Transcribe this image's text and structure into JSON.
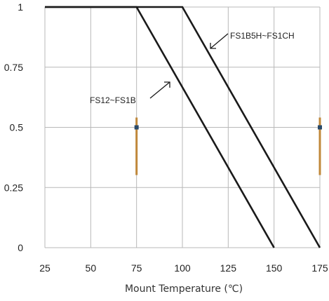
{
  "chart_data": {
    "type": "line",
    "title": "",
    "xlabel": "Mount Temperature (℃)",
    "ylabel": "",
    "xlim": [
      25,
      175
    ],
    "ylim": [
      0,
      1
    ],
    "x_ticks": [
      25,
      50,
      75,
      100,
      125,
      150,
      175
    ],
    "y_ticks": [
      {
        "value": 0,
        "label": "0"
      },
      {
        "value": 0.25,
        "label": "0.25"
      },
      {
        "value": 0.5,
        "label": "0.5"
      },
      {
        "value": 0.75,
        "label": "0.75"
      },
      {
        "value": 1,
        "label": "1"
      }
    ],
    "grid": true,
    "series": [
      {
        "name": "FS12~FS1B",
        "points": [
          [
            25,
            1
          ],
          [
            75,
            1
          ],
          [
            150,
            0
          ]
        ]
      },
      {
        "name": "FS1B5H~FS1CH",
        "points": [
          [
            25,
            1
          ],
          [
            100,
            1
          ],
          [
            175,
            0
          ]
        ]
      }
    ],
    "annotations": [
      {
        "text": "FS1B5H~FS1CH",
        "series": 1
      },
      {
        "text": "FS12~FS1B",
        "series": 0
      }
    ]
  },
  "colors": {
    "line": "#1a1a1a",
    "grid": "#b8b8b8",
    "marker": "#c0883a",
    "marker_dot": "#2a4a6a"
  }
}
